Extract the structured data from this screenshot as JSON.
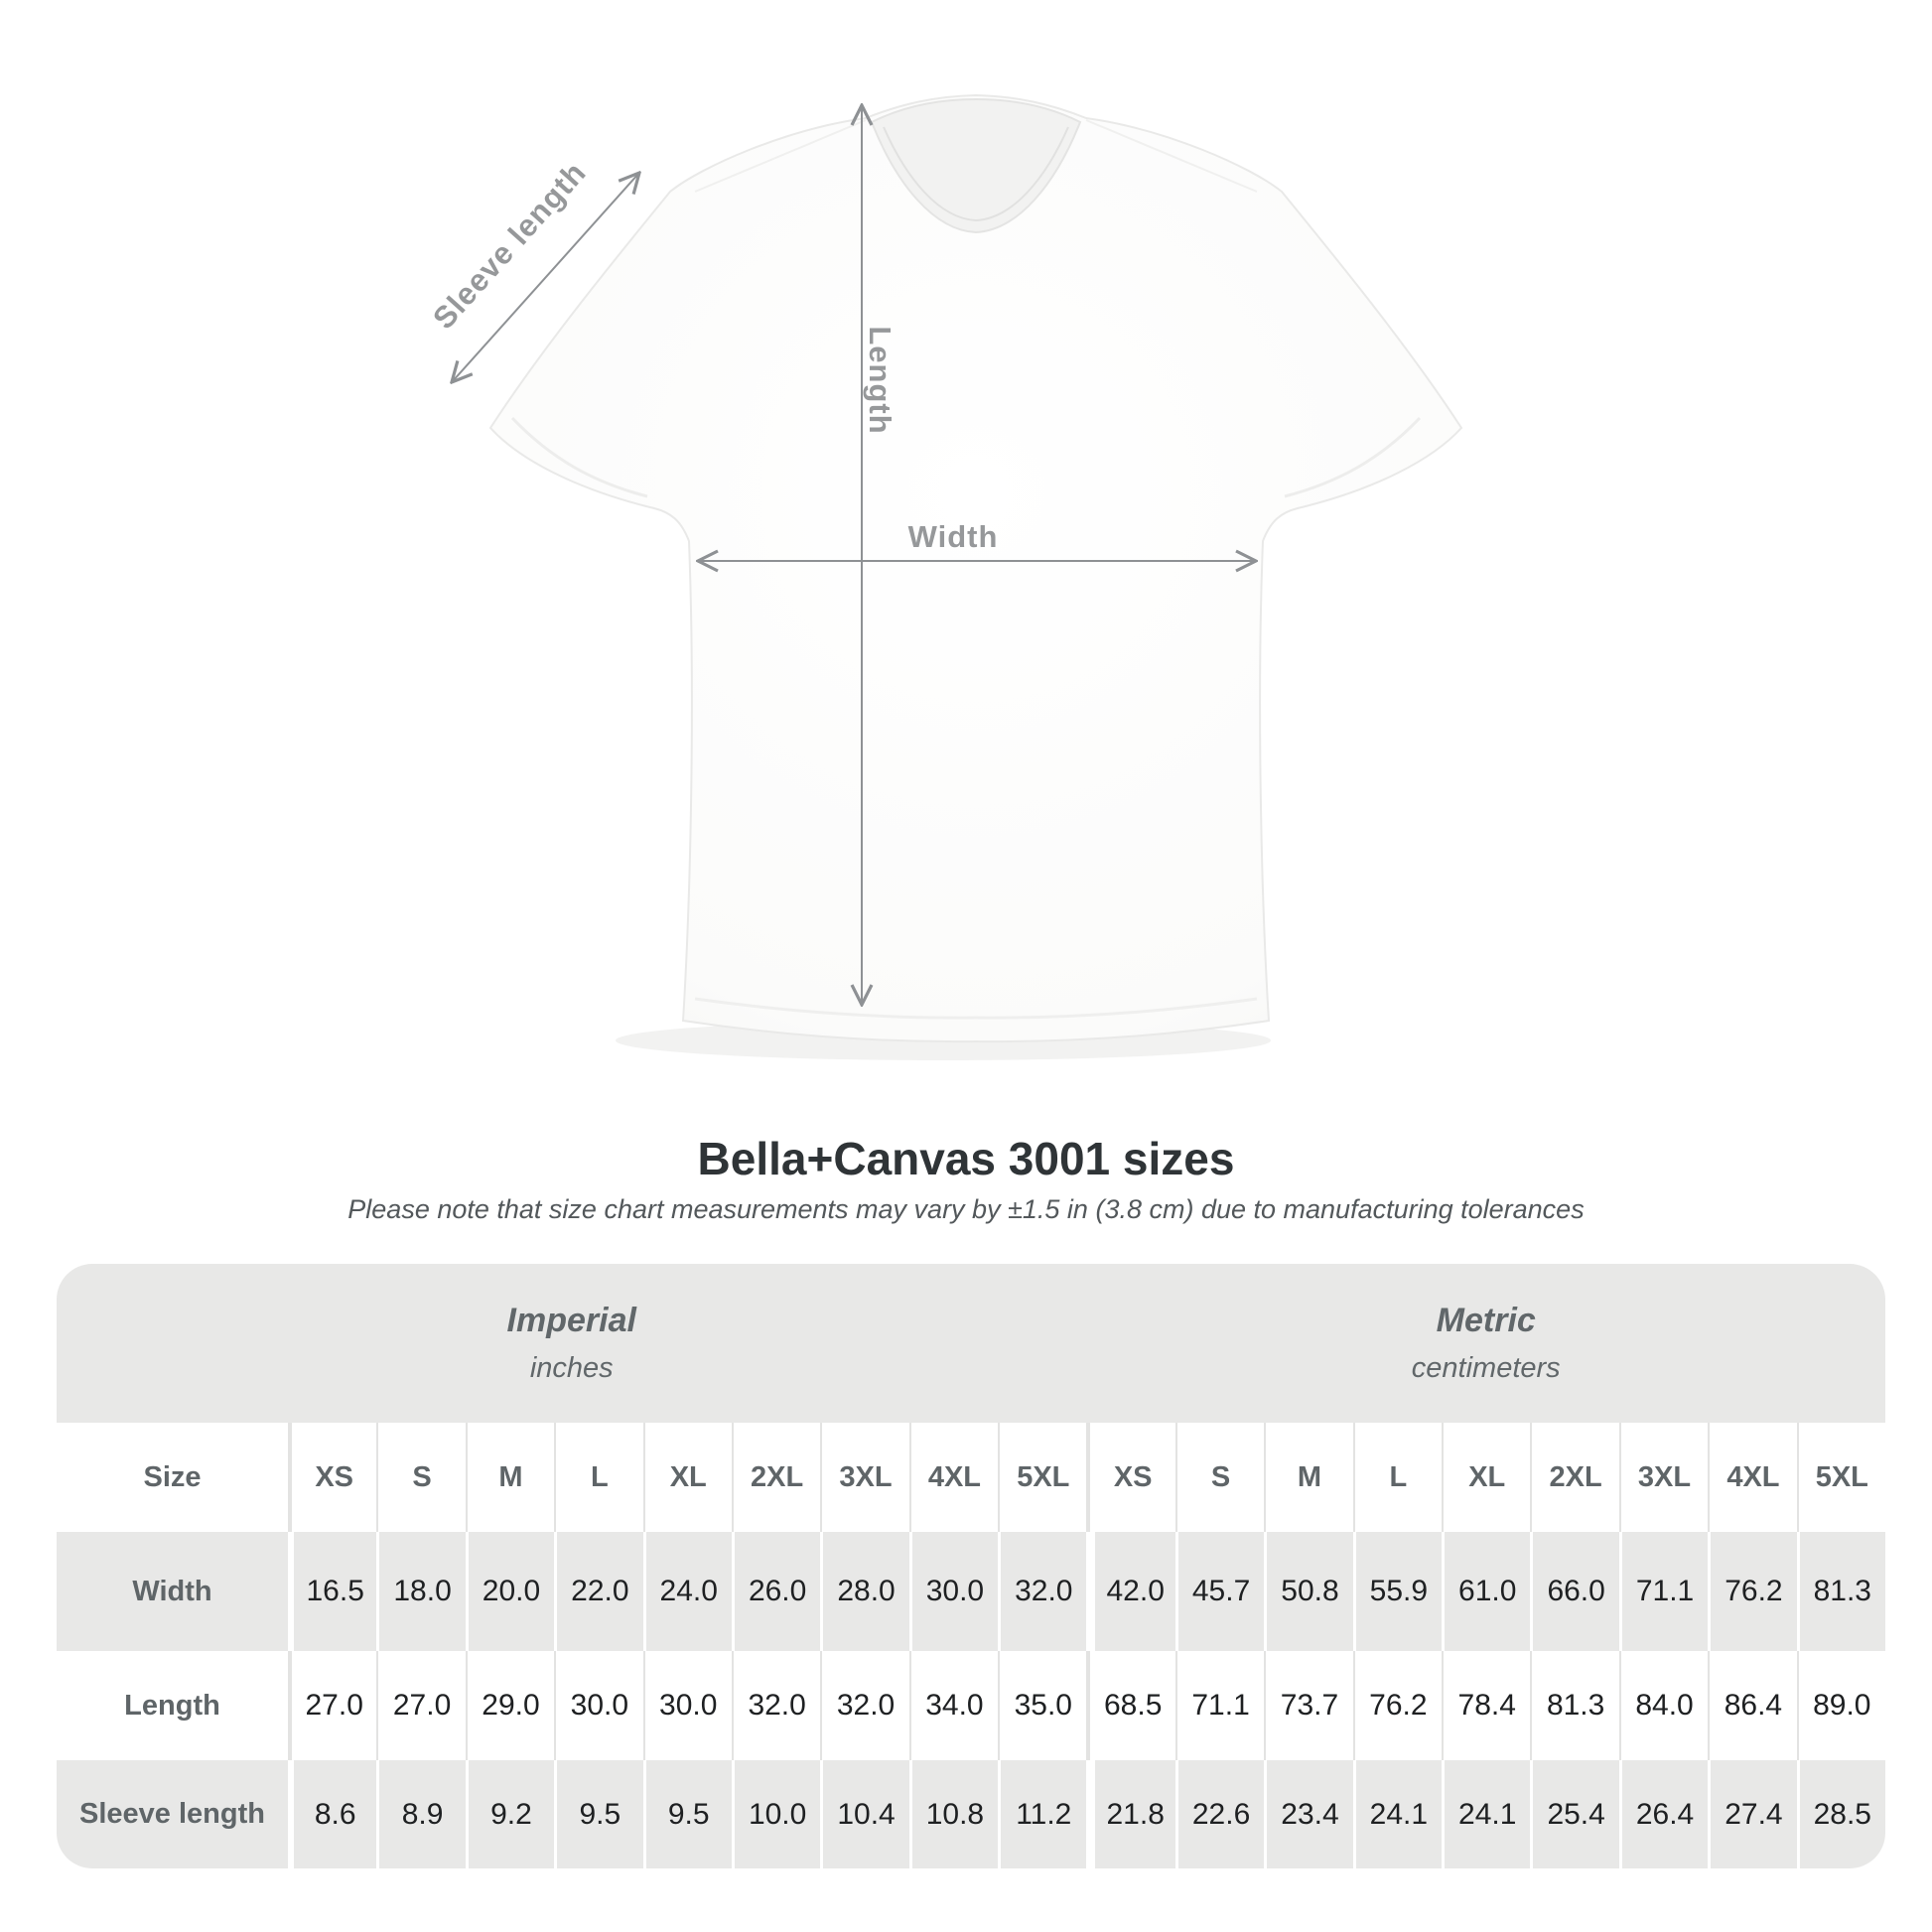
{
  "diagram": {
    "sleeve_label": "Sleeve length",
    "length_label": "Length",
    "width_label": "Width"
  },
  "header": {
    "title": "Bella+Canvas 3001 sizes",
    "note": "Please note that size chart measurements may vary by ±1.5 in (3.8 cm) due to manufacturing tolerances"
  },
  "table": {
    "size_header": "Size",
    "groups": [
      {
        "name": "Imperial",
        "unit": "inches"
      },
      {
        "name": "Metric",
        "unit": "centimeters"
      }
    ]
  },
  "chart_data": {
    "type": "table",
    "title": "Bella+Canvas 3001 sizes",
    "note": "Measurements may vary by ±1.5 in (3.8 cm) due to manufacturing tolerances",
    "column_groups": [
      "Imperial (inches)",
      "Metric (centimeters)"
    ],
    "sizes": [
      "XS",
      "S",
      "M",
      "L",
      "XL",
      "2XL",
      "3XL",
      "4XL",
      "5XL"
    ],
    "rows": [
      {
        "label": "Width",
        "imperial": [
          "16.5",
          "18.0",
          "20.0",
          "22.0",
          "24.0",
          "26.0",
          "28.0",
          "30.0",
          "32.0"
        ],
        "metric": [
          "42.0",
          "45.7",
          "50.8",
          "55.9",
          "61.0",
          "66.0",
          "71.1",
          "76.2",
          "81.3"
        ]
      },
      {
        "label": "Length",
        "imperial": [
          "27.0",
          "27.0",
          "29.0",
          "30.0",
          "30.0",
          "32.0",
          "32.0",
          "34.0",
          "35.0"
        ],
        "metric": [
          "68.5",
          "71.1",
          "73.7",
          "76.2",
          "78.4",
          "81.3",
          "84.0",
          "86.4",
          "89.0"
        ]
      },
      {
        "label": "Sleeve length",
        "imperial": [
          "8.6",
          "8.9",
          "9.2",
          "9.5",
          "9.5",
          "10.0",
          "10.4",
          "10.8",
          "11.2"
        ],
        "metric": [
          "21.8",
          "22.6",
          "23.4",
          "24.1",
          "24.1",
          "25.4",
          "26.4",
          "27.4",
          "28.5"
        ]
      }
    ]
  },
  "colors": {
    "band_gray": "#e8e8e7",
    "header_text": "#5f6568",
    "data_text": "#1e2022",
    "diagram_label": "#96989a",
    "arrow": "#8e9194",
    "title_text": "#2f3437"
  }
}
